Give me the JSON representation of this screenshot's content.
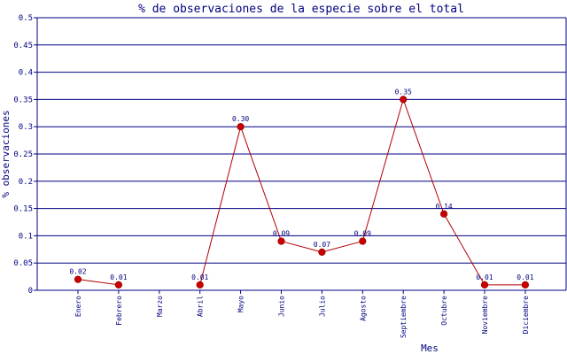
{
  "chart_data": {
    "type": "line",
    "title": "% de observaciones de la especie sobre el total",
    "xlabel": "Mes",
    "ylabel": "% observaciones",
    "ylim": [
      0,
      0.5
    ],
    "yticks": [
      "0",
      "0.05",
      "0.1",
      "0.15",
      "0.2",
      "0.25",
      "0.3",
      "0.35",
      "0.4",
      "0.45",
      "0.5"
    ],
    "categories": [
      "Enero",
      "Febrero",
      "Marzo",
      "Abril",
      "Mayo",
      "Junio",
      "Julio",
      "Agosto",
      "Septiembre",
      "Octubre",
      "Noviembre",
      "Diciembre"
    ],
    "series": [
      {
        "values": [
          0.02,
          0.01,
          null,
          0.01,
          0.3,
          0.09,
          0.07,
          0.09,
          0.35,
          0.14,
          0.01,
          0.01
        ],
        "labels": [
          "0.02",
          "0.01",
          "",
          "0.01",
          "0.30",
          "0.09",
          "0.07",
          "0.09",
          "0.35",
          "0.14",
          "0.01",
          "0.01"
        ]
      }
    ],
    "grid": true,
    "colors": {
      "line": "#b00000",
      "marker": "#cc0000",
      "grid": "#000080",
      "text": "#000080"
    }
  }
}
